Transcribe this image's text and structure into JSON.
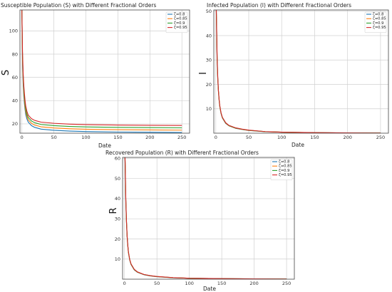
{
  "chart_data": [
    {
      "type": "line",
      "title": "Susceptible Population (S) with Different Fractional Orders",
      "xlabel": "Date",
      "ylabel": "S",
      "xlim": [
        -3,
        262
      ],
      "ylim": [
        12,
        118
      ],
      "xticks": [
        0,
        50,
        100,
        150,
        200,
        250
      ],
      "yticks": [
        20,
        40,
        60,
        80,
        100
      ],
      "grid": true,
      "legend_position": "top-right",
      "series": [
        {
          "name": "ζ=0.8",
          "color": "#1f77b4",
          "x": [
            0,
            1,
            2,
            3,
            4,
            5,
            6,
            8,
            10,
            15,
            20,
            30,
            50,
            75,
            100,
            150,
            200,
            250
          ],
          "y": [
            118,
            72,
            55,
            44,
            37,
            32,
            28,
            24,
            21.5,
            18.5,
            17,
            15.5,
            14.5,
            13.8,
            13.4,
            13,
            12.8,
            12.6
          ]
        },
        {
          "name": "ζ=0.85",
          "color": "#ff7f0e",
          "x": [
            0,
            1,
            2,
            3,
            4,
            5,
            6,
            8,
            10,
            15,
            20,
            30,
            50,
            75,
            100,
            150,
            200,
            250
          ],
          "y": [
            118,
            75,
            58,
            47,
            40,
            34.5,
            30.5,
            26,
            23.5,
            20.5,
            19,
            17.5,
            16.5,
            15.8,
            15.4,
            15,
            14.8,
            14.6
          ]
        },
        {
          "name": "ζ=0.9",
          "color": "#2ca02c",
          "x": [
            0,
            1,
            2,
            3,
            4,
            5,
            6,
            8,
            10,
            15,
            20,
            30,
            50,
            75,
            100,
            150,
            200,
            250
          ],
          "y": [
            118,
            78,
            61,
            50,
            43,
            37.5,
            33,
            28,
            25.5,
            22.5,
            21,
            19.5,
            18.5,
            17.8,
            17.4,
            17,
            16.8,
            16.6
          ]
        },
        {
          "name": "ζ=0.95",
          "color": "#d62728",
          "x": [
            0,
            1,
            2,
            3,
            4,
            5,
            6,
            8,
            10,
            15,
            20,
            30,
            50,
            75,
            100,
            150,
            200,
            250
          ],
          "y": [
            118,
            82,
            64,
            53,
            46,
            40,
            35.5,
            30.5,
            27.5,
            24.5,
            23,
            21.5,
            20.5,
            19.8,
            19.4,
            19,
            18.8,
            18.6
          ]
        }
      ]
    },
    {
      "type": "line",
      "title": "Infected Population (I) with Different Fractional Orders",
      "xlabel": "Date",
      "ylabel": "I",
      "xlim": [
        -3,
        262
      ],
      "ylim": [
        0,
        50.5
      ],
      "xticks": [
        0,
        50,
        100,
        150,
        200,
        250
      ],
      "yticks": [
        10,
        20,
        30,
        40,
        50
      ],
      "grid": true,
      "legend_position": "top-right",
      "series": [
        {
          "name": "ζ=0.8",
          "color": "#1f77b4",
          "x": [
            0,
            1,
            2,
            3,
            4,
            5,
            6,
            8,
            10,
            15,
            20,
            30,
            40,
            50,
            75,
            100,
            150,
            200,
            250
          ],
          "y": [
            60,
            46,
            30,
            22,
            17,
            13.5,
            11,
            8,
            6.2,
            4,
            3,
            2,
            1.5,
            1.1,
            0.6,
            0.4,
            0.2,
            0.1,
            0.05
          ]
        },
        {
          "name": "ζ=0.85",
          "color": "#ff7f0e",
          "x": [
            0,
            1,
            2,
            3,
            4,
            5,
            6,
            8,
            10,
            15,
            20,
            30,
            40,
            50,
            75,
            100,
            150,
            200,
            250
          ],
          "y": [
            60,
            46.5,
            30.5,
            22.3,
            17.2,
            13.7,
            11.1,
            8.1,
            6.3,
            4.1,
            3.05,
            2.05,
            1.55,
            1.15,
            0.62,
            0.41,
            0.21,
            0.1,
            0.05
          ]
        },
        {
          "name": "ζ=0.9",
          "color": "#2ca02c",
          "x": [
            0,
            1,
            2,
            3,
            4,
            5,
            6,
            8,
            10,
            15,
            20,
            30,
            40,
            50,
            75,
            100,
            150,
            200,
            250
          ],
          "y": [
            60,
            47,
            31,
            22.6,
            17.4,
            13.9,
            11.2,
            8.2,
            6.4,
            4.2,
            3.1,
            2.1,
            1.6,
            1.2,
            0.64,
            0.42,
            0.22,
            0.11,
            0.05
          ]
        },
        {
          "name": "ζ=0.95",
          "color": "#d62728",
          "x": [
            0,
            1,
            2,
            3,
            4,
            5,
            6,
            8,
            10,
            15,
            20,
            30,
            40,
            50,
            75,
            100,
            150,
            200,
            250
          ],
          "y": [
            60,
            48,
            31.5,
            23,
            17.6,
            14.1,
            11.4,
            8.3,
            6.5,
            4.3,
            3.2,
            2.2,
            1.65,
            1.25,
            0.66,
            0.43,
            0.23,
            0.12,
            0.06
          ]
        }
      ]
    },
    {
      "type": "line",
      "title": "Recovered Population (R) with Different Fractional Orders",
      "xlabel": "Date",
      "ylabel": "R",
      "xlim": [
        -3,
        262
      ],
      "ylim": [
        0,
        60.5
      ],
      "xticks": [
        0,
        50,
        100,
        150,
        200,
        250
      ],
      "yticks": [
        10,
        20,
        30,
        40,
        50,
        60
      ],
      "grid": true,
      "legend_position": "top-right",
      "series": [
        {
          "name": "ζ=0.8",
          "color": "#1f77b4",
          "x": [
            0,
            1,
            2,
            3,
            4,
            5,
            6,
            8,
            10,
            15,
            20,
            30,
            40,
            50,
            75,
            100,
            150,
            200,
            250
          ],
          "y": [
            70,
            56,
            38,
            28,
            21,
            16.5,
            13.2,
            9.5,
            7.3,
            4.6,
            3.4,
            2.2,
            1.6,
            1.2,
            0.7,
            0.45,
            0.25,
            0.12,
            0.06
          ]
        },
        {
          "name": "ζ=0.85",
          "color": "#ff7f0e",
          "x": [
            0,
            1,
            2,
            3,
            4,
            5,
            6,
            8,
            10,
            15,
            20,
            30,
            40,
            50,
            75,
            100,
            150,
            200,
            250
          ],
          "y": [
            70,
            56.5,
            38.5,
            28.3,
            21.2,
            16.7,
            13.3,
            9.6,
            7.4,
            4.7,
            3.45,
            2.25,
            1.65,
            1.25,
            0.72,
            0.46,
            0.26,
            0.13,
            0.06
          ]
        },
        {
          "name": "ζ=0.9",
          "color": "#2ca02c",
          "x": [
            0,
            1,
            2,
            3,
            4,
            5,
            6,
            8,
            10,
            15,
            20,
            30,
            40,
            50,
            75,
            100,
            150,
            200,
            250
          ],
          "y": [
            70,
            57,
            39,
            28.6,
            21.4,
            16.9,
            13.4,
            9.7,
            7.5,
            4.8,
            3.5,
            2.3,
            1.7,
            1.3,
            0.74,
            0.47,
            0.27,
            0.14,
            0.07
          ]
        },
        {
          "name": "ζ=0.95",
          "color": "#d62728",
          "x": [
            0,
            1,
            2,
            3,
            4,
            5,
            6,
            8,
            10,
            15,
            20,
            30,
            40,
            50,
            75,
            100,
            150,
            200,
            250
          ],
          "y": [
            70,
            58,
            39.5,
            29,
            21.6,
            17.1,
            13.6,
            9.8,
            7.6,
            4.9,
            3.6,
            2.35,
            1.75,
            1.35,
            0.76,
            0.48,
            0.28,
            0.15,
            0.07
          ]
        }
      ]
    }
  ]
}
